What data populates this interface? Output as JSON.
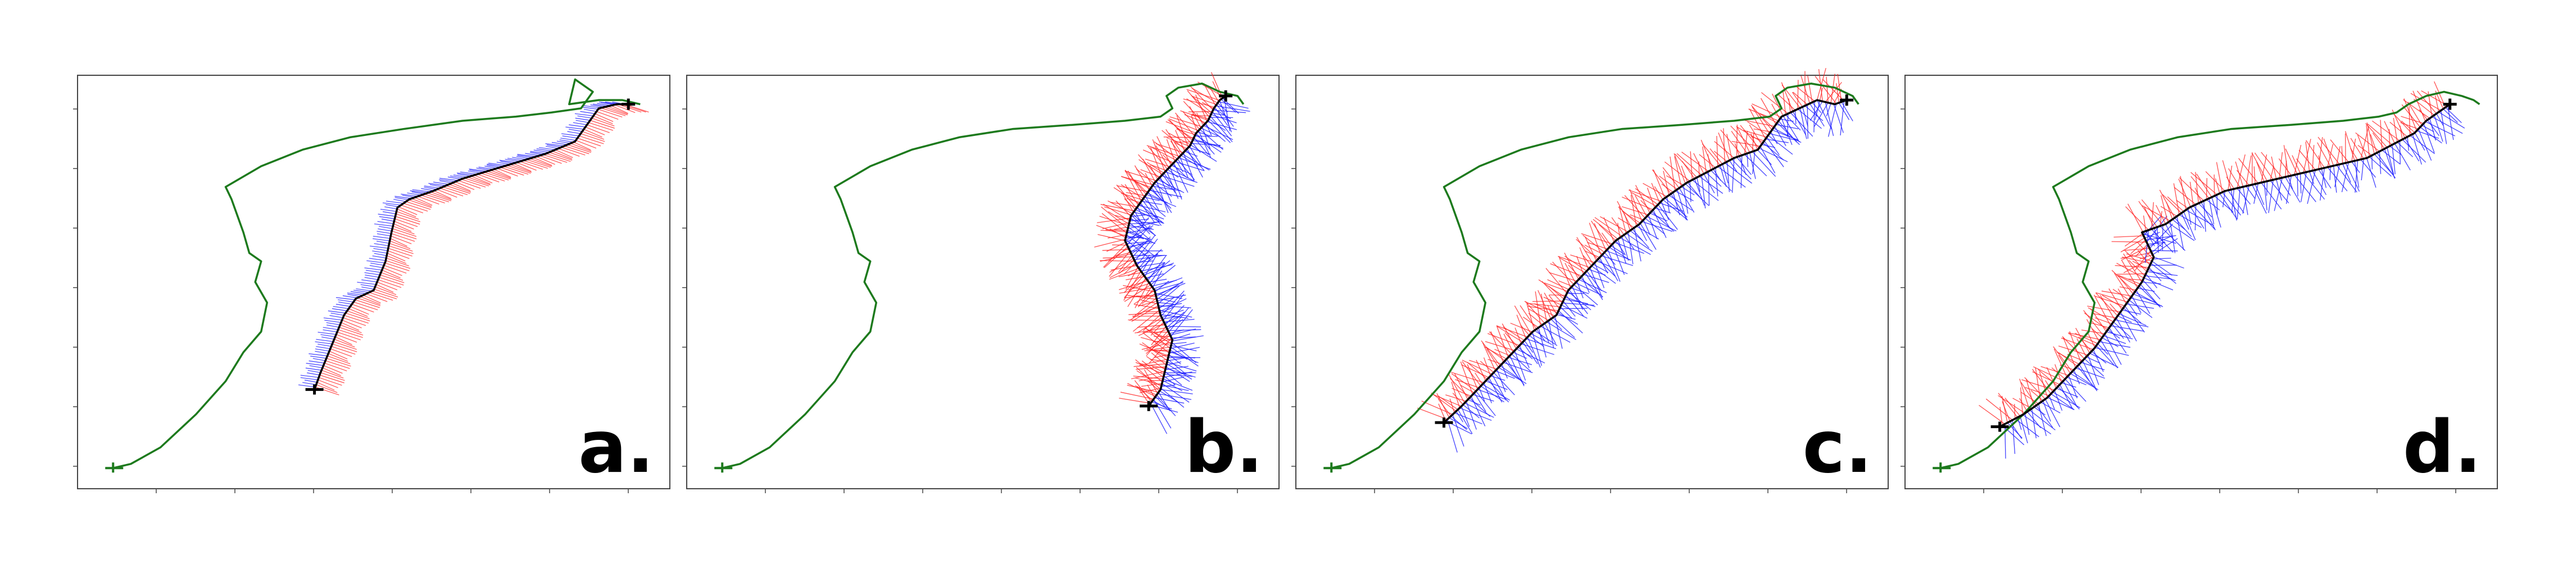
{
  "figure": {
    "colors": {
      "green_path": "#1d7a1d",
      "trajectory": "#000000",
      "blue_lines": "#2020ff",
      "red_lines": "#ff2020",
      "frame": "#444444"
    }
  },
  "chart_data": [
    {
      "type": "line",
      "panel_label": "a.",
      "grid": false,
      "xlim": [
        0,
        100
      ],
      "ylim": [
        0,
        100
      ],
      "series": [
        {
          "role": "reference-path",
          "color": "#1d7a1d",
          "x": [
            6,
            9,
            14,
            20,
            25,
            28,
            31,
            32,
            30,
            31,
            29,
            28,
            27,
            26,
            25,
            31,
            38,
            46,
            55,
            65,
            74,
            80,
            85,
            87,
            84,
            83,
            88,
            92,
            95
          ],
          "y": [
            5,
            6,
            10,
            18,
            26,
            33,
            38,
            45,
            50,
            55,
            57,
            62,
            66,
            70,
            73,
            78,
            82,
            85,
            87,
            89,
            90,
            91,
            92,
            96,
            99,
            93,
            94,
            94,
            93
          ]
        },
        {
          "role": "estimated-trajectory",
          "color": "#000000",
          "x": [
            40,
            41,
            43,
            45,
            47,
            50,
            52,
            53,
            54,
            56,
            60,
            65,
            72,
            79,
            84,
            86,
            88,
            91,
            93
          ],
          "y": [
            24,
            28,
            35,
            42,
            46,
            48,
            55,
            62,
            68,
            70,
            72,
            75,
            78,
            81,
            84,
            88,
            92,
            93,
            93
          ]
        }
      ]
    },
    {
      "type": "line",
      "panel_label": "b.",
      "grid": false,
      "xlim": [
        0,
        100
      ],
      "ylim": [
        0,
        100
      ],
      "series": [
        {
          "role": "reference-path",
          "color": "#1d7a1d",
          "x": [
            6,
            9,
            14,
            20,
            25,
            28,
            31,
            32,
            30,
            31,
            29,
            28,
            27,
            26,
            25,
            31,
            38,
            46,
            55,
            65,
            74,
            80,
            82,
            81,
            83,
            87,
            90,
            93,
            94
          ],
          "y": [
            5,
            6,
            10,
            18,
            26,
            33,
            38,
            45,
            50,
            55,
            57,
            62,
            66,
            70,
            73,
            78,
            82,
            85,
            87,
            88,
            89,
            90,
            92,
            95,
            97,
            98,
            96,
            95,
            93
          ]
        },
        {
          "role": "estimated-trajectory",
          "color": "#000000",
          "x": [
            78,
            80,
            81,
            82,
            80,
            79,
            76,
            74,
            75,
            77,
            79,
            81,
            83,
            85,
            86,
            88,
            89,
            90,
            91
          ],
          "y": [
            20,
            24,
            30,
            36,
            42,
            48,
            54,
            60,
            66,
            70,
            74,
            77,
            80,
            83,
            86,
            89,
            92,
            94,
            95
          ]
        }
      ]
    },
    {
      "type": "line",
      "panel_label": "c.",
      "grid": false,
      "xlim": [
        0,
        100
      ],
      "ylim": [
        0,
        100
      ],
      "series": [
        {
          "role": "reference-path",
          "color": "#1d7a1d",
          "x": [
            6,
            9,
            14,
            20,
            25,
            28,
            31,
            32,
            30,
            31,
            29,
            28,
            27,
            26,
            25,
            31,
            38,
            46,
            55,
            65,
            74,
            80,
            82,
            81,
            83,
            87,
            91,
            94,
            95
          ],
          "y": [
            5,
            6,
            10,
            18,
            26,
            33,
            38,
            45,
            50,
            55,
            57,
            62,
            66,
            70,
            73,
            78,
            82,
            85,
            87,
            88,
            89,
            90,
            92,
            95,
            97,
            98,
            97,
            95,
            93
          ]
        },
        {
          "role": "estimated-trajectory",
          "color": "#000000",
          "x": [
            25,
            28,
            32,
            36,
            40,
            44,
            46,
            50,
            54,
            58,
            62,
            66,
            70,
            74,
            78,
            80,
            82,
            85,
            88,
            91,
            93
          ],
          "y": [
            16,
            20,
            26,
            32,
            38,
            42,
            48,
            54,
            60,
            64,
            70,
            74,
            77,
            80,
            82,
            86,
            90,
            92,
            94,
            93,
            94
          ]
        }
      ]
    },
    {
      "type": "line",
      "panel_label": "d.",
      "grid": false,
      "xlim": [
        0,
        100
      ],
      "ylim": [
        0,
        100
      ],
      "series": [
        {
          "role": "reference-path",
          "color": "#1d7a1d",
          "x": [
            6,
            9,
            14,
            20,
            25,
            28,
            31,
            32,
            30,
            31,
            29,
            28,
            27,
            26,
            25,
            31,
            38,
            46,
            55,
            65,
            74,
            80,
            83,
            85,
            88,
            91,
            94,
            96,
            97
          ],
          "y": [
            5,
            6,
            10,
            18,
            26,
            33,
            38,
            45,
            50,
            55,
            57,
            62,
            66,
            70,
            73,
            78,
            82,
            85,
            87,
            88,
            89,
            90,
            91,
            93,
            95,
            96,
            95,
            94,
            93
          ]
        },
        {
          "role": "estimated-trajectory",
          "color": "#000000",
          "x": [
            16,
            20,
            24,
            28,
            32,
            36,
            40,
            42,
            40,
            44,
            48,
            54,
            60,
            66,
            72,
            78,
            82,
            86,
            88,
            90,
            92
          ],
          "y": [
            15,
            18,
            22,
            28,
            34,
            42,
            50,
            56,
            62,
            64,
            68,
            72,
            74,
            76,
            78,
            80,
            83,
            86,
            89,
            91,
            93
          ]
        }
      ]
    }
  ]
}
